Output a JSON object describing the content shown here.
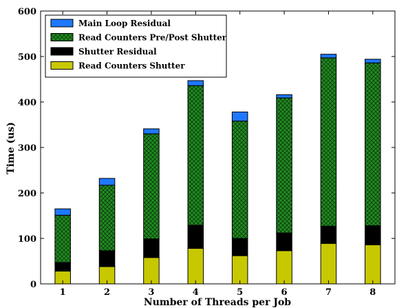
{
  "chart_data": {
    "type": "bar",
    "stacked": true,
    "categories": [
      "1",
      "2",
      "3",
      "4",
      "5",
      "6",
      "7",
      "8"
    ],
    "xlabel": "Number of Threads per Job",
    "ylabel": "Time (us)",
    "ylim": [
      0,
      600
    ],
    "yticks": [
      0,
      100,
      200,
      300,
      400,
      500,
      600
    ],
    "legend_position": "top-left",
    "series": [
      {
        "name": "Read Counters Shutter",
        "color": "#c8c800",
        "pattern": "solid",
        "values": [
          28,
          38,
          58,
          78,
          62,
          73,
          89,
          86
        ]
      },
      {
        "name": "Shutter Residual",
        "color": "#000000",
        "pattern": "solid",
        "values": [
          19,
          35,
          41,
          51,
          38,
          39,
          38,
          42
        ]
      },
      {
        "name": "Read Counters Pre/Post Shutter",
        "color": "#228b22",
        "pattern": "crosshatch",
        "values": [
          104,
          144,
          231,
          307,
          258,
          297,
          370,
          358
        ]
      },
      {
        "name": "Main Loop Residual",
        "color": "#1e78ff",
        "pattern": "solid",
        "values": [
          14,
          15,
          11,
          11,
          20,
          7,
          8,
          8
        ]
      }
    ]
  }
}
